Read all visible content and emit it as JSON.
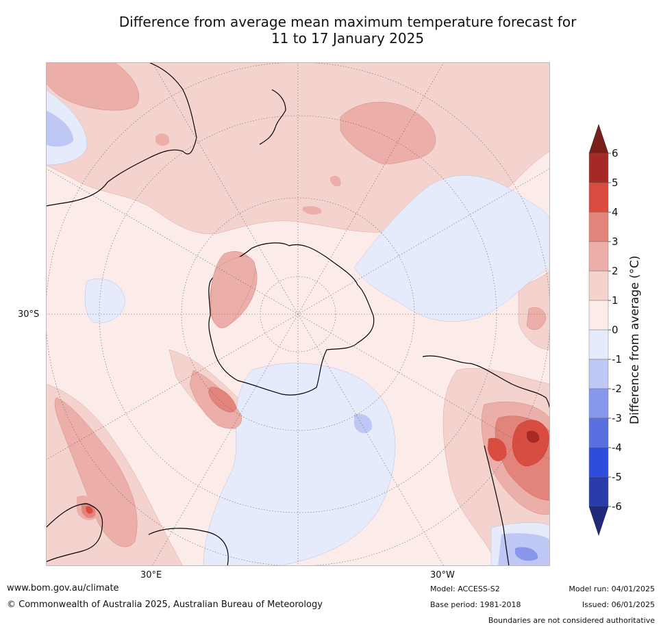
{
  "title": {
    "line1": "Difference from average mean maximum temperature forecast for",
    "line2": "11 to 17 January 2025"
  },
  "map": {
    "lat_label": "30°S",
    "lon_labels": [
      "30°E",
      "30°W"
    ],
    "colors": {
      "plus_0_1": "#fbebe9",
      "plus_1_2": "#f4d2ce",
      "plus_2_3": "#ebaea8",
      "plus_3_4": "#e3847b",
      "plus_4_5": "#d94c40",
      "plus_5_6": "#a52a25",
      "minus_0_1": "#e6ebfb",
      "minus_1_2": "#bfc8f4",
      "minus_2_3": "#8797ec",
      "coast": "#000000"
    }
  },
  "colorbar": {
    "label": "Difference from average (°C)",
    "ticks": [
      "6",
      "5",
      "4",
      "3",
      "2",
      "1",
      "0",
      "-1",
      "-2",
      "-3",
      "-4",
      "-5",
      "-6"
    ],
    "colors": [
      "#a52a25",
      "#d94c40",
      "#e3847b",
      "#ebaea8",
      "#f4d2ce",
      "#fbebe9",
      "#e6ebfb",
      "#bfc8f4",
      "#8797ec",
      "#5970e0",
      "#2f4ddb",
      "#283da9"
    ],
    "over_color": "#7a1f1a",
    "under_color": "#1f2a7c"
  },
  "footer": {
    "website": "www.bom.gov.au/climate",
    "copyright": "© Commonwealth of Australia 2025, Australian Bureau of Meteorology",
    "model": "Model: ACCESS-S2",
    "base_period": "Base period: 1981-2018",
    "model_run": "Model run: 04/01/2025",
    "issued": "Issued: 06/01/2025",
    "disclaimer": "Boundaries are not considered authoritative"
  }
}
